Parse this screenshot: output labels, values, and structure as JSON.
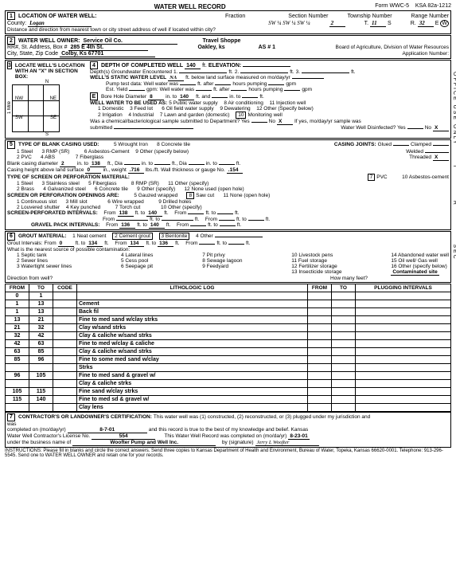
{
  "form": {
    "title": "WATER WELL RECORD",
    "form_no": "Form WWC-5",
    "ksa": "KSA 82a-1212"
  },
  "sec1": {
    "label": "LOCATION OF WATER WELL:",
    "county_lbl": "County:",
    "county": "Logan",
    "fraction_lbl": "Fraction",
    "frac": "SW ¼ SW ¼ SW ¼",
    "section_lbl": "Section Number",
    "section": "2",
    "township_lbl": "Township Number",
    "township": "11",
    "township_dir": "S",
    "range_lbl": "Range Number",
    "range": "32",
    "range_dir": "E",
    "range_dir2": "W",
    "distance_note": "Distance and direction from nearest town or city street address of well if located within city?"
  },
  "sec2": {
    "label": "WATER WELL OWNER:",
    "owner": "Service Oil Co.",
    "addr_lbl": "RR#, St. Address, Box #",
    "addr": "285 E 4th St.",
    "biz": "Travel Shoppe",
    "city_lbl": "City, State, Zip Code",
    "city": "Colby, Ks 67701",
    "oakley": "Oakley, ks",
    "as": "AS # 1",
    "board": "Board of Agriculture, Division of Water Resources",
    "app_lbl": "Application Number:"
  },
  "sec3": {
    "label": "LOCATE WELL'S LOCATION WITH AN \"X\" IN SECTION BOX:",
    "n": "N",
    "s": "S",
    "e": "E",
    "w": "W",
    "ne": "NE",
    "nw": "NW",
    "se": "SE",
    "sw": "SW",
    "mile": "1 Mile"
  },
  "sec4": {
    "label": "DEPTH OF COMPLETED WELL",
    "depth": "140",
    "ft": "ft.",
    "elev_lbl": "ELEVATION:",
    "gw_lbl": "Depth(s) Groundwater Encountered",
    "d1": "1.",
    "d2": "2.",
    "d3": "3.",
    "static_lbl": "WELL'S STATIC WATER LEVEL",
    "static": "NA",
    "static_note": "ft. below land surface measured on mo/day/yr",
    "pump_lbl": "Pump test data:",
    "well_water": "Well water was",
    "after": "ft. after",
    "hours": "hours pumping",
    "gpm": "gpm",
    "yield_lbl": "Est. Yield",
    "yield_gpm": "gpm:",
    "bore_lbl": "Bore Hole Diameter",
    "bore": "8",
    "in_to": "in. to",
    "bore_to": "140",
    "ft_and": "ft. and",
    "in_to2": "in. to",
    "ft2": "ft.",
    "use_lbl": "WELL WATER TO BE USED AS:",
    "u1": "1   Domestic",
    "u2": "2   Irrigation",
    "u3": "3   Feed lot",
    "u4": "4   Industrial",
    "u5": "5   Public water supply",
    "u6": "6   Oil field water supply",
    "u7": "7   Lawn and garden (domestic)",
    "u8": "8   Air conditioning",
    "u9": "9   Dewatering",
    "u10": "10  Monitoring well",
    "u11": "11  Injection well",
    "u12": "12  Other (Specify below)",
    "chem_lbl": "Was a chemical/bacteriological sample submitted to Department? Yes",
    "no": "No",
    "x": "X",
    "chem_note": "If yes, mo/day/yr sample was",
    "submitted": "submitted",
    "disinfect": "Water Well Disinfected? Yes",
    "no2": "No",
    "x2": "X"
  },
  "sec5": {
    "label": "TYPE OF BLANK CASING USED:",
    "c1": "1   Steel",
    "c2": "2   PVC",
    "c3": "3   RMP (SR)",
    "c4": "4   ABS",
    "c5": "5   Wrought Iron",
    "c6": "6   Asbestos-Cement",
    "c7": "7   Fiberglass",
    "c8": "8   Concrete tile",
    "c9": "9   Other (specify below)",
    "joints_lbl": "CASING JOINTS:",
    "glued": "Glued",
    "clamped": "Clamped",
    "welded": "Welded",
    "threaded": "Threaded",
    "thr_x": "X",
    "blank_lbl": "Blank casing diameter",
    "blank_dia": "2",
    "blank_into": "in. to",
    "blank_to": "138",
    "ft_dia": "ft., Dia",
    "ft_dia2": "ft., Dia",
    "in_to3": "in. to",
    "ft3": "ft.",
    "ch_lbl": "Casing height above land surface",
    "ch": "0",
    "in_wt": "in., weight",
    "wt": ".716",
    "lbs": "lbs./ft.",
    "thick_lbl": "Wall thickness or gauge No.",
    "thick": ".154",
    "screen_lbl": "TYPE OF SCREEN OR PERFORATION MATERIAL:",
    "s1": "1   Steel",
    "s2": "2   Brass",
    "s3": "3   Stainless steel",
    "s4": "4   Galvanized steel",
    "s5": "5   Fiberglass",
    "s6": "6   Concrete tile",
    "s7": "7",
    "s7lbl": "PVC",
    "s8": "8   RMP (SR)",
    "s9": "9   Other (specify)",
    "s10": "10  Asbestos-cement",
    "s11": "11  Other (specify)",
    "s12": "12  None used (open hole)",
    "open_lbl": "SCREEN OR PERFORATION OPENINGS ARE:",
    "o1": "1   Continuous slot",
    "o2": "2   Louvered shutter",
    "o3": "3   Mill slot",
    "o4": "4   Key punched",
    "o5": "5   Gauzed wrapped",
    "o6": "6   Wire wrapped",
    "o7": "7   Torch cut",
    "o8": "8",
    "o8lbl": "Saw cut",
    "o9": "9   Drilled holes",
    "o10": "10  Other (specify)",
    "o11": "11  None (open hole)",
    "sp_lbl": "SCREEN-PERFORATED INTERVALS:",
    "from": "From",
    "to": "ft. to",
    "ft4": "ft.",
    "sp_from1": "138",
    "sp_to1": "140",
    "gp_lbl": "GRAVEL PACK INTERVALS:",
    "gp_from1": "136",
    "gp_to1": "140"
  },
  "sec6": {
    "label": "GROUT MATERIAL:",
    "g1": "1   Neat cement",
    "g2": "2 Cement grout",
    "g3": "3 Bentonite",
    "g4": "4   Other",
    "gi_lbl": "Grout Intervals:",
    "from": "From",
    "to": "ft. to",
    "ft": "ft.",
    "gi_f1": "0",
    "gi_t1": "134",
    "gi_f2": "134",
    "gi_t2": "136",
    "contam_lbl": "What is the nearest source of possible contamination:",
    "p1": "1   Septic tank",
    "p2": "2   Sewer lines",
    "p3": "3   Watertight sewer lines",
    "p4": "4   Lateral lines",
    "p5": "5   Cess pool",
    "p6": "6   Seepage pit",
    "p7": "7   Pit privy",
    "p8": "8   Sewage lagoon",
    "p9": "9   Feedyard",
    "p10": "10  Livestock pens",
    "p11": "11  Fuel storage",
    "p12": "12  Fertilizer storage",
    "p13": "13  Insecticide storage",
    "p14": "14  Abandoned water well",
    "p15": "15  Oil well/ Gas well",
    "p16": "16  Other (specify below)",
    "p_ans": "Contaminated site",
    "dir_lbl": "Direction from well?",
    "many_lbl": "How many feet?"
  },
  "log": {
    "hdr_from": "FROM",
    "hdr_to": "TO",
    "hdr_code": "CODE",
    "hdr_lith": "LITHOLOGIC LOG",
    "hdr_from2": "FROM",
    "hdr_to2": "TO",
    "hdr_plug": "PLUGGING INTERVALS",
    "rows": [
      {
        "f": "0",
        "t": "1",
        "l": ""
      },
      {
        "f": "1",
        "t": "13",
        "l": "Cement"
      },
      {
        "f": "1",
        "t": "13",
        "l": "Back fil",
        "spare": true
      },
      {
        "f": "13",
        "t": "21",
        "l": "Fine to med sand w/clay strks"
      },
      {
        "f": "21",
        "t": "32",
        "l": "Clay w/sand strks"
      },
      {
        "f": "32",
        "t": "42",
        "l": "Clay & caliche w/sand strks"
      },
      {
        "f": "42",
        "t": "63",
        "l": "Fine to med w/clay & caliche"
      },
      {
        "f": "63",
        "t": "85",
        "l": "Clay & caliche w/sand strks"
      },
      {
        "f": "85",
        "t": "96",
        "l": "Fine to some med sand w/clay"
      },
      {
        "f": "",
        "t": "",
        "l": "Strks"
      },
      {
        "f": "96",
        "t": "105",
        "l": "Fine to med sand & gravel w/"
      },
      {
        "f": "",
        "t": "",
        "l": "Clay & caliche strks"
      },
      {
        "f": "105",
        "t": "115",
        "l": "Fine sand w/clay strks"
      },
      {
        "f": "115",
        "t": "140",
        "l": "Fine to med sd & gravel w/"
      },
      {
        "f": "",
        "t": "",
        "l": "Clay lens"
      }
    ]
  },
  "sec7": {
    "label": "CONTRACTOR'S OR LANDOWNER'S CERTIFICATION:",
    "text1": "This water well was (1) constructed, (2) reconstructed, or (3) plugged under my jurisdiction and",
    "text2": "was",
    "completed_lbl": "completed on (mo/day/yr)",
    "completed": "8-7-01",
    "text3": "and this record is true to the best of my knowledge and belief.  Kansas",
    "lic_lbl": "Water Well Contractor's License No.",
    "lic": "554",
    "text4": "This Water Well Record was completed on (mo/da/yr)",
    "date2": "8-23-01",
    "biz_lbl": "under the business name of",
    "biz": "Woofter Pump and Well Inc.",
    "by": "by (signature)",
    "sig": "Jerry L Woofter"
  },
  "instructions": "INSTRUCTIONS:  Please fill in blanks and circle the correct answers.  Send three copies to Kansas Department of Health and Environment, Bureau of Water, Topeka, Kansas 66620-0001. Telephone: 913-296-5545. Send one to WATER WELL OWNER and retain one for your records.",
  "side": {
    "office": "OFFICE USE ONLY",
    "t": "T",
    "r": "R",
    "sec": "SEC"
  }
}
